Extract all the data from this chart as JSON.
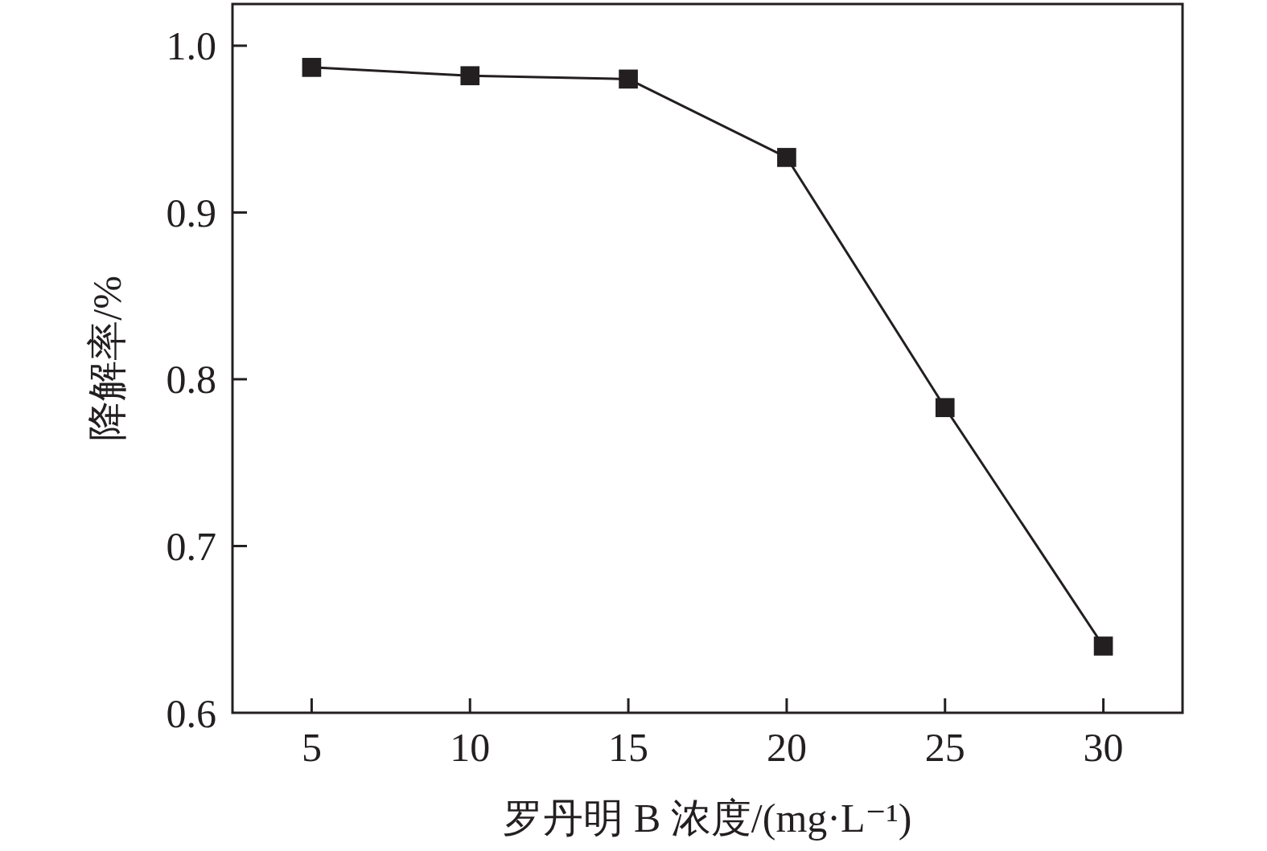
{
  "chart_data": {
    "type": "line",
    "xlabel": "罗丹明 B 浓度/(mg·L⁻¹)",
    "ylabel": "降解率/%",
    "x": [
      5,
      10,
      15,
      20,
      25,
      30
    ],
    "series": [
      {
        "color": "#231f20",
        "values": [
          0.987,
          0.982,
          0.98,
          0.933,
          0.783,
          0.64
        ]
      }
    ],
    "xlim": [
      2.5,
      32.5
    ],
    "ylim": [
      0.6,
      1.025
    ],
    "xticks": [
      5,
      10,
      15,
      20,
      25,
      30
    ],
    "yticks": [
      0.6,
      0.7,
      0.8,
      0.9,
      {
        "value": 1,
        "label": "1.0"
      }
    ],
    "marker": "square",
    "line_style": "solid",
    "grid": false
  }
}
